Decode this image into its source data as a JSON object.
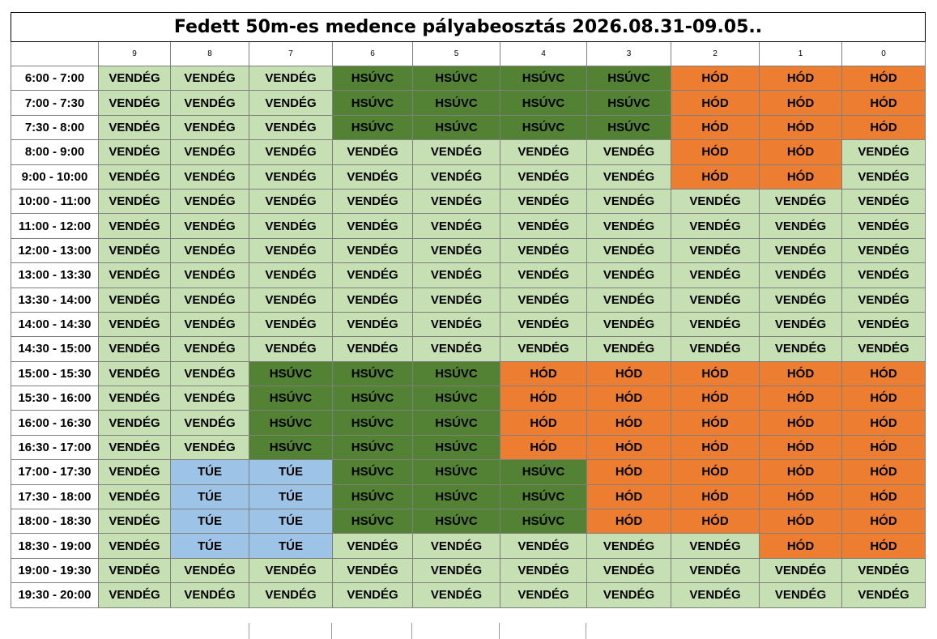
{
  "title": "Fedett 50m-es medence pályabeosztás 2026.08.31-09.05..",
  "lanes": [
    "9",
    "8",
    "7",
    "6",
    "5",
    "4",
    "3",
    "2",
    "1",
    "0"
  ],
  "legend_colors": {
    "VENDÉG": "#c6e0b4",
    "HSÚVC": "#548235",
    "HÓD": "#ed7d31",
    "TÚE": "#9dc3e6"
  },
  "rows": [
    {
      "time": "6:00 - 7:00",
      "cells": [
        "VENDÉG",
        "VENDÉG",
        "VENDÉG",
        "HSÚVC",
        "HSÚVC",
        "HSÚVC",
        "HSÚVC",
        "HÓD",
        "HÓD",
        "HÓD"
      ]
    },
    {
      "time": "7:00 - 7:30",
      "cells": [
        "VENDÉG",
        "VENDÉG",
        "VENDÉG",
        "HSÚVC",
        "HSÚVC",
        "HSÚVC",
        "HSÚVC",
        "HÓD",
        "HÓD",
        "HÓD"
      ]
    },
    {
      "time": "7:30 - 8:00",
      "cells": [
        "VENDÉG",
        "VENDÉG",
        "VENDÉG",
        "HSÚVC",
        "HSÚVC",
        "HSÚVC",
        "HSÚVC",
        "HÓD",
        "HÓD",
        "HÓD"
      ]
    },
    {
      "time": "8:00 - 9:00",
      "cells": [
        "VENDÉG",
        "VENDÉG",
        "VENDÉG",
        "VENDÉG",
        "VENDÉG",
        "VENDÉG",
        "VENDÉG",
        "HÓD",
        "HÓD",
        "VENDÉG"
      ]
    },
    {
      "time": "9:00 - 10:00",
      "cells": [
        "VENDÉG",
        "VENDÉG",
        "VENDÉG",
        "VENDÉG",
        "VENDÉG",
        "VENDÉG",
        "VENDÉG",
        "HÓD",
        "HÓD",
        "VENDÉG"
      ]
    },
    {
      "time": "10:00 - 11:00",
      "cells": [
        "VENDÉG",
        "VENDÉG",
        "VENDÉG",
        "VENDÉG",
        "VENDÉG",
        "VENDÉG",
        "VENDÉG",
        "VENDÉG",
        "VENDÉG",
        "VENDÉG"
      ]
    },
    {
      "time": "11:00 - 12:00",
      "cells": [
        "VENDÉG",
        "VENDÉG",
        "VENDÉG",
        "VENDÉG",
        "VENDÉG",
        "VENDÉG",
        "VENDÉG",
        "VENDÉG",
        "VENDÉG",
        "VENDÉG"
      ]
    },
    {
      "time": "12:00 - 13:00",
      "cells": [
        "VENDÉG",
        "VENDÉG",
        "VENDÉG",
        "VENDÉG",
        "VENDÉG",
        "VENDÉG",
        "VENDÉG",
        "VENDÉG",
        "VENDÉG",
        "VENDÉG"
      ]
    },
    {
      "time": "13:00 - 13:30",
      "cells": [
        "VENDÉG",
        "VENDÉG",
        "VENDÉG",
        "VENDÉG",
        "VENDÉG",
        "VENDÉG",
        "VENDÉG",
        "VENDÉG",
        "VENDÉG",
        "VENDÉG"
      ]
    },
    {
      "time": "13:30 - 14:00",
      "cells": [
        "VENDÉG",
        "VENDÉG",
        "VENDÉG",
        "VENDÉG",
        "VENDÉG",
        "VENDÉG",
        "VENDÉG",
        "VENDÉG",
        "VENDÉG",
        "VENDÉG"
      ]
    },
    {
      "time": "14:00 - 14:30",
      "cells": [
        "VENDÉG",
        "VENDÉG",
        "VENDÉG",
        "VENDÉG",
        "VENDÉG",
        "VENDÉG",
        "VENDÉG",
        "VENDÉG",
        "VENDÉG",
        "VENDÉG"
      ]
    },
    {
      "time": "14:30 - 15:00",
      "cells": [
        "VENDÉG",
        "VENDÉG",
        "VENDÉG",
        "VENDÉG",
        "VENDÉG",
        "VENDÉG",
        "VENDÉG",
        "VENDÉG",
        "VENDÉG",
        "VENDÉG"
      ]
    },
    {
      "time": "15:00 - 15:30",
      "cells": [
        "VENDÉG",
        "VENDÉG",
        "HSÚVC",
        "HSÚVC",
        "HSÚVC",
        "HÓD",
        "HÓD",
        "HÓD",
        "HÓD",
        "HÓD"
      ]
    },
    {
      "time": "15:30 - 16:00",
      "cells": [
        "VENDÉG",
        "VENDÉG",
        "HSÚVC",
        "HSÚVC",
        "HSÚVC",
        "HÓD",
        "HÓD",
        "HÓD",
        "HÓD",
        "HÓD"
      ]
    },
    {
      "time": "16:00 - 16:30",
      "cells": [
        "VENDÉG",
        "VENDÉG",
        "HSÚVC",
        "HSÚVC",
        "HSÚVC",
        "HÓD",
        "HÓD",
        "HÓD",
        "HÓD",
        "HÓD"
      ]
    },
    {
      "time": "16:30 - 17:00",
      "cells": [
        "VENDÉG",
        "VENDÉG",
        "HSÚVC",
        "HSÚVC",
        "HSÚVC",
        "HÓD",
        "HÓD",
        "HÓD",
        "HÓD",
        "HÓD"
      ]
    },
    {
      "time": "17:00 - 17:30",
      "cells": [
        "VENDÉG",
        "TÚE",
        "TÚE",
        "HSÚVC",
        "HSÚVC",
        "HSÚVC",
        "HÓD",
        "HÓD",
        "HÓD",
        "HÓD"
      ]
    },
    {
      "time": "17:30 - 18:00",
      "cells": [
        "VENDÉG",
        "TÚE",
        "TÚE",
        "HSÚVC",
        "HSÚVC",
        "HSÚVC",
        "HÓD",
        "HÓD",
        "HÓD",
        "HÓD"
      ]
    },
    {
      "time": "18:00 - 18:30",
      "cells": [
        "VENDÉG",
        "TÚE",
        "TÚE",
        "HSÚVC",
        "HSÚVC",
        "HSÚVC",
        "HÓD",
        "HÓD",
        "HÓD",
        "HÓD"
      ]
    },
    {
      "time": "18:30 - 19:00",
      "cells": [
        "VENDÉG",
        "TÚE",
        "TÚE",
        "VENDÉG",
        "VENDÉG",
        "VENDÉG",
        "VENDÉG",
        "VENDÉG",
        "HÓD",
        "HÓD"
      ]
    },
    {
      "time": "19:00 - 19:30",
      "cells": [
        "VENDÉG",
        "VENDÉG",
        "VENDÉG",
        "VENDÉG",
        "VENDÉG",
        "VENDÉG",
        "VENDÉG",
        "VENDÉG",
        "VENDÉG",
        "VENDÉG"
      ]
    },
    {
      "time": "19:30 - 20:00",
      "cells": [
        "VENDÉG",
        "VENDÉG",
        "VENDÉG",
        "VENDÉG",
        "VENDÉG",
        "VENDÉG",
        "VENDÉG",
        "VENDÉG",
        "VENDÉG",
        "VENDÉG"
      ]
    }
  ]
}
